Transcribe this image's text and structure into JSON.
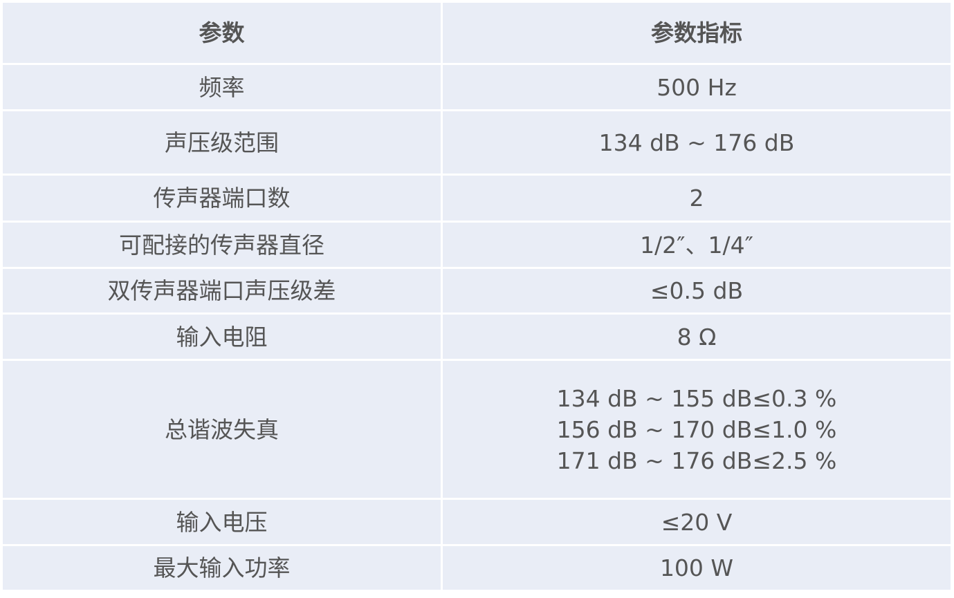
{
  "headers": {
    "param": "参数",
    "spec": "参数指标"
  },
  "rows": [
    {
      "param": "频率",
      "spec": [
        "500 Hz"
      ]
    },
    {
      "param": "声压级范围",
      "spec": [
        "134 dB ~ 176 dB"
      ]
    },
    {
      "param": "传声器端口数",
      "spec": [
        "2"
      ]
    },
    {
      "param": "可配接的传声器直径",
      "spec": [
        "1/2″、1/4″"
      ]
    },
    {
      "param": "双传声器端口声压级差",
      "spec": [
        "≤0.5 dB"
      ]
    },
    {
      "param": "输入电阻",
      "spec": [
        "8 Ω"
      ]
    },
    {
      "param": "总谐波失真",
      "spec": [
        "134 dB ~ 155 dB≤0.3 %",
        "156 dB ~ 170 dB≤1.0 %",
        "171 dB ~ 176 dB≤2.5 %"
      ]
    },
    {
      "param": "输入电压",
      "spec": [
        "≤20 V"
      ]
    },
    {
      "param": "最大输入功率",
      "spec": [
        "100 W"
      ]
    }
  ],
  "colors": {
    "cell_background": "#e9edf6",
    "border": "#ffffff",
    "text": "#555555"
  }
}
